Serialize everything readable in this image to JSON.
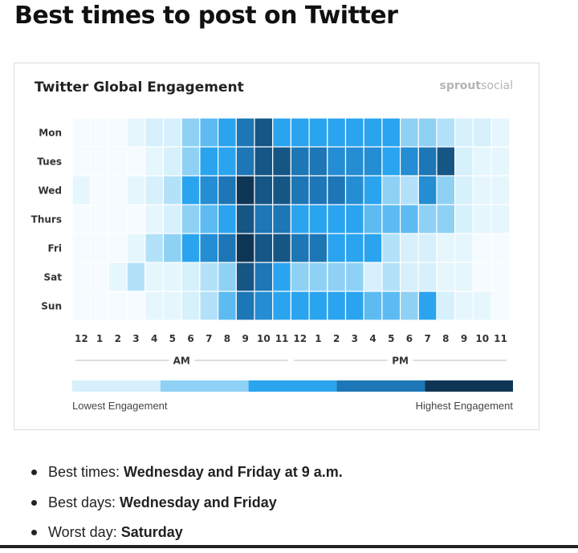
{
  "page_title": "Best times to post on Twitter",
  "brand": {
    "bold": "sprout",
    "light": "social"
  },
  "chart_data": {
    "type": "heatmap",
    "title": "Twitter Global Engagement",
    "rows": [
      "Mon",
      "Tues",
      "Wed",
      "Thurs",
      "Fri",
      "Sat",
      "Sun"
    ],
    "columns": [
      "12",
      "1",
      "2",
      "3",
      "4",
      "5",
      "6",
      "7",
      "8",
      "9",
      "10",
      "11",
      "12",
      "1",
      "2",
      "3",
      "4",
      "5",
      "6",
      "7",
      "8",
      "9",
      "10",
      "11"
    ],
    "period_labels": [
      "AM",
      "PM"
    ],
    "legend": {
      "low": "Lowest Engagement",
      "high": "Highest Engagement"
    },
    "engagement_levels": [
      [
        0,
        0,
        0,
        0.5,
        1,
        1,
        2,
        2.5,
        3,
        4,
        4.5,
        3,
        3,
        3,
        3,
        3,
        3,
        3,
        2,
        2,
        1.5,
        1,
        1,
        0.5
      ],
      [
        0,
        0,
        0,
        0,
        0.5,
        1,
        2,
        3,
        3,
        4,
        4.5,
        4.5,
        4,
        4,
        3.5,
        3.5,
        3.5,
        3,
        3.5,
        4,
        4.5,
        1,
        0.5,
        0.5
      ],
      [
        0.5,
        0,
        0,
        0.5,
        1,
        1.5,
        3,
        3.5,
        4,
        5,
        4.5,
        4.5,
        4,
        4,
        4,
        3.5,
        3,
        2,
        1.5,
        3.5,
        2,
        1,
        0.5,
        0.5
      ],
      [
        0,
        0,
        0,
        0,
        0.5,
        1,
        2,
        2.5,
        3,
        4.5,
        4,
        4,
        3,
        3,
        3,
        3,
        2.5,
        2.5,
        2.5,
        2,
        2,
        1,
        0.5,
        0.5
      ],
      [
        0,
        0,
        0,
        0.5,
        1.5,
        2,
        3,
        3.5,
        4,
        5,
        4.5,
        4.5,
        4,
        4,
        3,
        3,
        3,
        1.5,
        1,
        1,
        0.5,
        0.5,
        0,
        0
      ],
      [
        0,
        0,
        0.5,
        1.5,
        0.5,
        0.5,
        1,
        1.5,
        2,
        4.5,
        4,
        3,
        2,
        2,
        2,
        2,
        1,
        1.5,
        1,
        1,
        0.5,
        0.5,
        0,
        0
      ],
      [
        0,
        0,
        0,
        0,
        0.5,
        0.5,
        1,
        1.5,
        2.5,
        4,
        3.5,
        3,
        3,
        3,
        3,
        3,
        2.5,
        2.5,
        2,
        3,
        1,
        0.5,
        0.5,
        0
      ]
    ],
    "scale_colors": [
      "#d6f0fc",
      "#8fd1f5",
      "#2aa4ef",
      "#1d76b6",
      "#0f3554"
    ]
  },
  "bullets": [
    {
      "label": "Best times: ",
      "value": "Wednesday and Friday at 9 a.m."
    },
    {
      "label": "Best days: ",
      "value": "Wednesday and Friday"
    },
    {
      "label": "Worst day: ",
      "value": "Saturday"
    }
  ]
}
